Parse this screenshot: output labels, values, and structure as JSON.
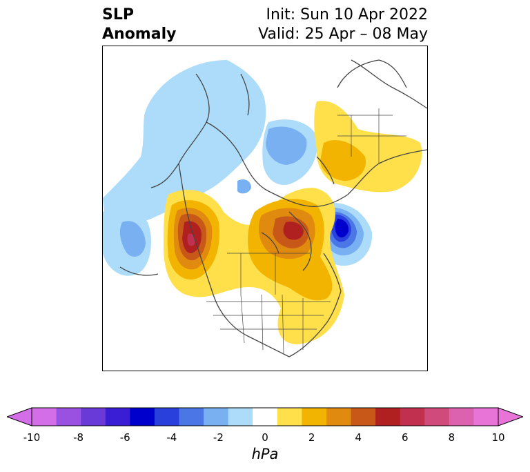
{
  "header": {
    "title_line1": "SLP",
    "title_line2": "Anomaly",
    "init_text": "Init: Sun 10 Apr 2022",
    "valid_text": "Valid: 25 Apr – 08 May"
  },
  "colorbar": {
    "units": "hPa",
    "ticks": [
      "-10",
      "-8",
      "-6",
      "-4",
      "-2",
      "0",
      "2",
      "4",
      "6",
      "8",
      "10"
    ],
    "levels": [
      -10,
      -9,
      -8,
      -7,
      -6,
      -5,
      -4,
      -3,
      -2,
      -1,
      1,
      2,
      3,
      4,
      5,
      6,
      7,
      8,
      9,
      10
    ],
    "colors": [
      "#d46ee8",
      "#9a50e0",
      "#6a3ad8",
      "#3a1ed6",
      "#0000cc",
      "#2a40dc",
      "#4a76e6",
      "#78b0f2",
      "#acdcfa",
      "#ffffff",
      "#ffe04a",
      "#f2b400",
      "#e08a10",
      "#c85818",
      "#b02020",
      "#c23050",
      "#d04a7c",
      "#dc62b0",
      "#e874d8"
    ],
    "extend": "both"
  },
  "map": {
    "projection": "polar-stereographic",
    "region": "Northern Hemisphere / North America"
  }
}
